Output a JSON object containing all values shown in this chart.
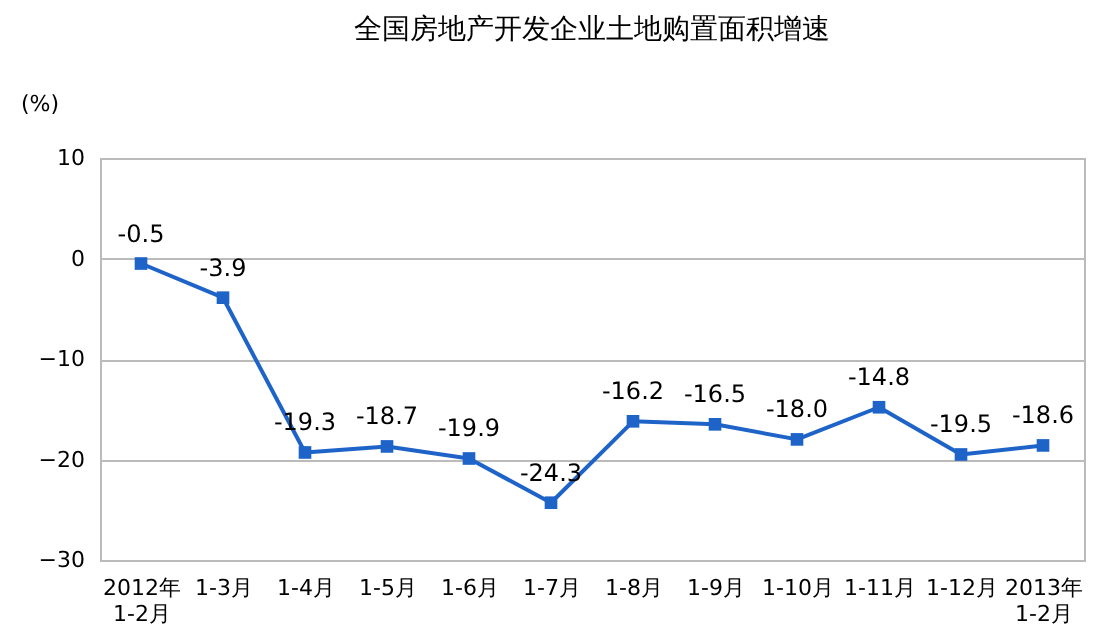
{
  "chart_data": {
    "type": "line",
    "title": "全国房地产开发企业土地购置面积增速",
    "ylabel": "(%)",
    "categories": [
      "2012年\n1-2月",
      "1-3月",
      "1-4月",
      "1-5月",
      "1-6月",
      "1-7月",
      "1-8月",
      "1-9月",
      "1-10月",
      "1-11月",
      "1-12月",
      "2013年\n1-2月"
    ],
    "series": [
      {
        "color": "#1e64c8",
        "values": [
          -0.5,
          -3.9,
          -19.3,
          -18.7,
          -19.9,
          -24.3,
          -16.2,
          -16.5,
          -18.0,
          -14.8,
          -19.5,
          -18.6
        ],
        "value_labels": [
          "-0.5",
          "-3.9",
          "-19.3",
          "-18.7",
          "-19.9",
          "-24.3",
          "-16.2",
          "-16.5",
          "-18.0",
          "-14.8",
          "-19.5",
          "-18.6"
        ]
      }
    ],
    "ylim": [
      -30,
      10
    ],
    "yticks": [
      -30,
      -20,
      -10,
      0,
      10
    ],
    "grid": "y",
    "marker": "square",
    "line_style": "solid",
    "data_labels": true
  }
}
